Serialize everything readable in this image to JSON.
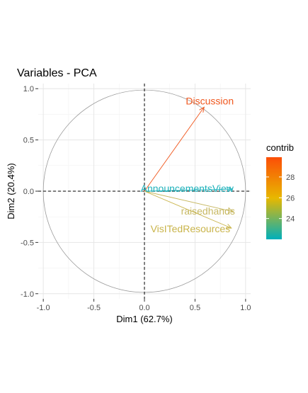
{
  "chart_data": {
    "type": "scatter",
    "subtype": "pca-correlation-circle",
    "title": "Variables - PCA",
    "xlabel": "Dim1 (62.7%)",
    "ylabel": "Dim2 (20.4%)",
    "xlim": [
      -1.05,
      1.05
    ],
    "ylim": [
      -1.05,
      1.05
    ],
    "x_ticks": [
      -1.0,
      -0.5,
      0.0,
      0.5,
      1.0
    ],
    "x_tick_labels": [
      "-1.0",
      "-0.5",
      "0.0",
      "0.5",
      "1.0"
    ],
    "y_ticks": [
      -1.0,
      -0.5,
      0.0,
      0.5,
      1.0
    ],
    "y_tick_labels": [
      "-1.0",
      "-0.5",
      "0.0",
      "0.5",
      "1.0"
    ],
    "grid": true,
    "unit_circle": true,
    "variables": [
      {
        "name": "Discussion",
        "x": 0.59,
        "y": 0.82,
        "contrib": 29.8,
        "color": "#f0581f"
      },
      {
        "name": "AnnouncementsView",
        "x": 0.87,
        "y": 0.02,
        "contrib": 22.5,
        "color": "#20b2bb"
      },
      {
        "name": "raisedhands",
        "x": 0.88,
        "y": -0.2,
        "contrib": 24.6,
        "color": "#c7b862"
      },
      {
        "name": "VisITedResources",
        "x": 0.86,
        "y": -0.36,
        "contrib": 25.0,
        "color": "#c9b44a"
      }
    ],
    "legend": {
      "title": "contrib",
      "position": "right",
      "range": [
        22.0,
        29.9
      ],
      "ticks": [
        24,
        26,
        28
      ],
      "tick_labels": [
        "24",
        "26",
        "28"
      ],
      "gradient": [
        "#00AFBB",
        "#E7B800",
        "#FC4E07"
      ]
    }
  }
}
